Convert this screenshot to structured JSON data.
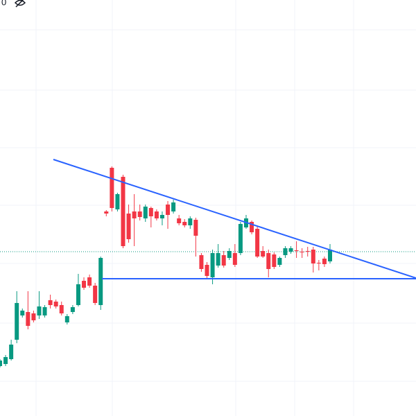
{
  "chart_data": {
    "type": "candlestick",
    "label": "0",
    "ylim": [
      0,
      600
    ],
    "up_color": "#089981",
    "down_color": "#f23645",
    "open": [
      72,
      75,
      82,
      110,
      145,
      150,
      148,
      145,
      145,
      167,
      165,
      160,
      135,
      150,
      160,
      195,
      200,
      188,
      160,
      295,
      358,
      298,
      345,
      292,
      295,
      295,
      285,
      300,
      295,
      285,
      305,
      295,
      285,
      280,
      275,
      283,
      232,
      218,
      200,
      217,
      232,
      228,
      235,
      235,
      272,
      280,
      270,
      238,
      235,
      233,
      218,
      232,
      237,
      239,
      237,
      238,
      240,
      221,
      227,
      223
    ],
    "high": [
      82,
      88,
      110,
      180,
      155,
      180,
      152,
      180,
      160,
      175,
      168,
      165,
      147,
      160,
      205,
      200,
      204,
      192,
      230,
      297,
      360,
      322,
      348,
      305,
      320,
      305,
      305,
      302,
      298,
      295,
      310,
      312,
      290,
      284,
      288,
      286,
      235,
      222,
      240,
      248,
      238,
      242,
      248,
      280,
      290,
      282,
      274,
      245,
      240,
      236,
      230,
      245,
      245,
      252,
      242,
      244,
      244,
      225,
      230,
      248
    ],
    "low": [
      70,
      72,
      80,
      105,
      142,
      125,
      135,
      140,
      142,
      155,
      155,
      145,
      132,
      147,
      158,
      182,
      185,
      160,
      153,
      288,
      295,
      295,
      242,
      250,
      245,
      282,
      280,
      272,
      282,
      275,
      270,
      292,
      275,
      272,
      270,
      230,
      208,
      198,
      190,
      214,
      214,
      225,
      215,
      232,
      270,
      262,
      228,
      228,
      200,
      212,
      215,
      228,
      234,
      228,
      228,
      230,
      207,
      210,
      215,
      220
    ],
    "close": [
      80,
      85,
      103,
      163,
      152,
      130,
      138,
      158,
      157,
      160,
      158,
      148,
      144,
      157,
      190,
      185,
      188,
      163,
      228,
      292,
      300,
      320,
      245,
      255,
      285,
      287,
      302,
      288,
      285,
      290,
      290,
      308,
      278,
      275,
      285,
      260,
      212,
      202,
      235,
      235,
      217,
      238,
      218,
      277,
      285,
      265,
      230,
      230,
      212,
      215,
      228,
      242,
      242,
      238,
      236,
      237,
      220,
      220,
      219,
      240
    ]
  }
}
